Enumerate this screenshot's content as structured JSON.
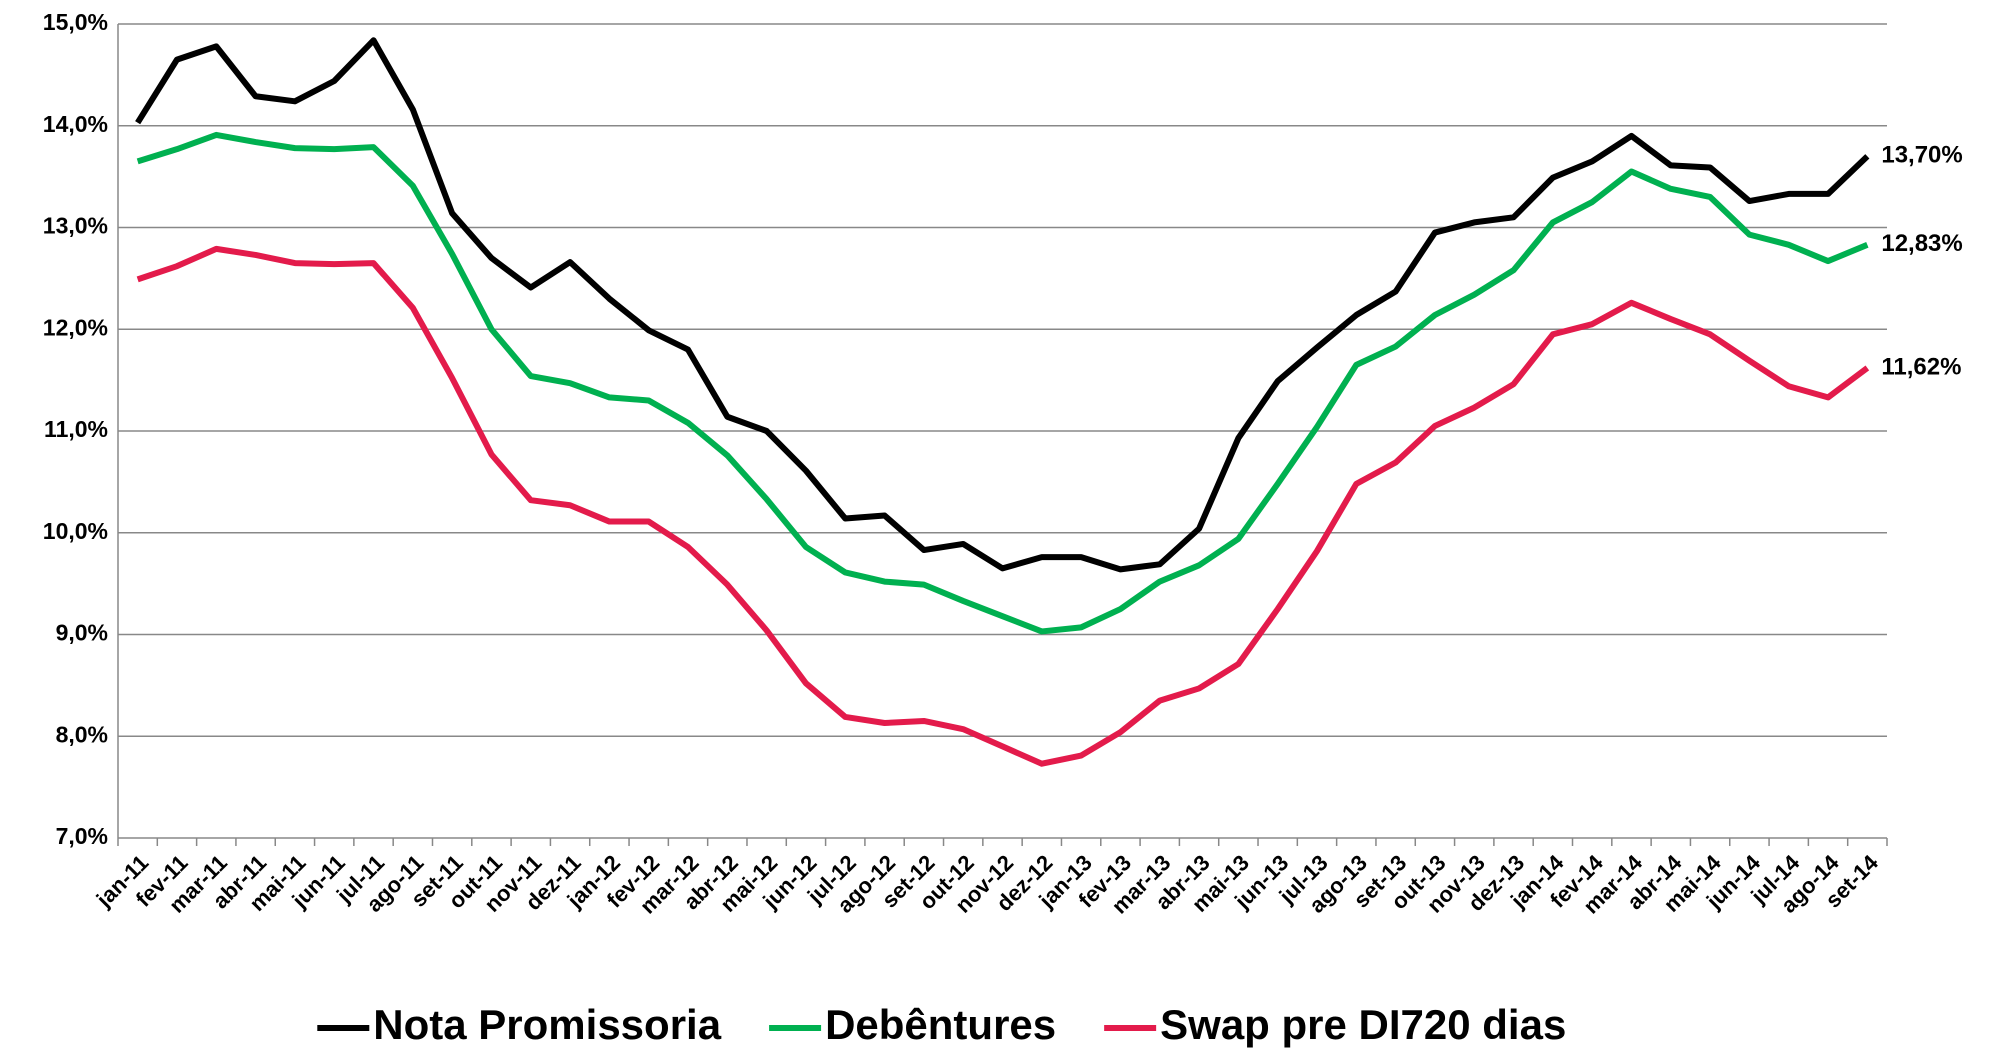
{
  "chart_data": {
    "type": "line",
    "categories": [
      "jan-11",
      "fev-11",
      "mar-11",
      "abr-11",
      "mai-11",
      "jun-11",
      "jul-11",
      "ago-11",
      "set-11",
      "out-11",
      "nov-11",
      "dez-11",
      "jan-12",
      "fev-12",
      "mar-12",
      "abr-12",
      "mai-12",
      "jun-12",
      "jul-12",
      "ago-12",
      "set-12",
      "out-12",
      "nov-12",
      "dez-12",
      "jan-13",
      "fev-13",
      "mar-13",
      "abr-13",
      "mai-13",
      "jun-13",
      "jul-13",
      "ago-13",
      "set-13",
      "out-13",
      "nov-13",
      "dez-13",
      "jan-14",
      "fev-14",
      "mar-14",
      "abr-14",
      "mai-14",
      "jun-14",
      "jul-14",
      "ago-14",
      "set-14"
    ],
    "series": [
      {
        "name": "Nota Promissoria",
        "color": "#000000",
        "values": [
          14.03,
          14.65,
          14.78,
          14.29,
          14.24,
          14.44,
          14.84,
          14.16,
          13.14,
          12.7,
          12.41,
          12.66,
          12.3,
          11.99,
          11.8,
          11.14,
          11.0,
          10.61,
          10.14,
          10.17,
          9.83,
          9.89,
          9.65,
          9.76,
          9.76,
          9.64,
          9.69,
          10.04,
          10.93,
          11.49,
          11.82,
          12.14,
          12.37,
          12.95,
          13.05,
          13.1,
          13.49,
          13.65,
          13.9,
          13.61,
          13.59,
          13.26,
          13.33,
          13.33,
          13.7
        ],
        "value_labels": [
          null,
          null,
          null,
          null,
          null,
          null,
          null,
          null,
          null,
          null,
          null,
          null,
          null,
          null,
          null,
          null,
          null,
          null,
          null,
          null,
          null,
          null,
          null,
          null,
          null,
          null,
          null,
          null,
          null,
          null,
          null,
          null,
          null,
          null,
          null,
          null,
          null,
          null,
          null,
          null,
          null,
          null,
          null,
          null,
          "13,70%"
        ]
      },
      {
        "name": "Debêntures",
        "color": "#00b050",
        "values": [
          13.65,
          13.77,
          13.91,
          13.84,
          13.78,
          13.77,
          13.79,
          13.41,
          12.74,
          12.0,
          11.54,
          11.47,
          11.33,
          11.3,
          11.08,
          10.76,
          10.33,
          9.86,
          9.61,
          9.52,
          9.49,
          9.33,
          9.18,
          9.03,
          9.07,
          9.25,
          9.52,
          9.68,
          9.94,
          10.48,
          11.04,
          11.65,
          11.83,
          12.14,
          12.34,
          12.58,
          13.05,
          13.25,
          13.55,
          13.38,
          13.3,
          12.93,
          12.83,
          12.67,
          12.83
        ],
        "value_labels": [
          null,
          null,
          null,
          null,
          null,
          null,
          null,
          null,
          null,
          null,
          null,
          null,
          null,
          null,
          null,
          null,
          null,
          null,
          null,
          null,
          null,
          null,
          null,
          null,
          null,
          null,
          null,
          null,
          null,
          null,
          null,
          null,
          null,
          null,
          null,
          null,
          null,
          null,
          null,
          null,
          null,
          null,
          null,
          null,
          "12,83%"
        ]
      },
      {
        "name": "Swap pre DI720 dias",
        "color": "#e31b4b",
        "values": [
          12.49,
          12.62,
          12.79,
          12.73,
          12.65,
          12.64,
          12.65,
          12.21,
          11.52,
          10.77,
          10.32,
          10.27,
          10.11,
          10.11,
          9.86,
          9.49,
          9.04,
          8.52,
          8.19,
          8.13,
          8.15,
          8.07,
          7.9,
          7.73,
          7.81,
          8.04,
          8.35,
          8.47,
          8.71,
          9.25,
          9.82,
          10.48,
          10.69,
          11.05,
          11.23,
          11.46,
          11.95,
          12.05,
          12.26,
          12.1,
          11.95,
          11.69,
          11.44,
          11.33,
          11.62
        ],
        "value_labels": [
          null,
          null,
          null,
          null,
          null,
          null,
          null,
          null,
          null,
          null,
          null,
          null,
          null,
          null,
          null,
          null,
          null,
          null,
          null,
          null,
          null,
          null,
          null,
          null,
          null,
          null,
          null,
          null,
          null,
          null,
          null,
          null,
          null,
          null,
          null,
          null,
          null,
          null,
          null,
          null,
          null,
          null,
          null,
          null,
          "11,62%"
        ]
      }
    ],
    "ylim": [
      7,
      15
    ],
    "yticks": [
      {
        "value": 7,
        "label": "7,0%"
      },
      {
        "value": 8,
        "label": "8,0%"
      },
      {
        "value": 9,
        "label": "9,0%"
      },
      {
        "value": 10,
        "label": "10,0%"
      },
      {
        "value": 11,
        "label": "11,0%"
      },
      {
        "value": 12,
        "label": "12,0%"
      },
      {
        "value": 13,
        "label": "13,0%"
      },
      {
        "value": 14,
        "label": "14,0%"
      },
      {
        "value": 15,
        "label": "15,0%"
      }
    ],
    "grid": true,
    "legend": "bottom"
  }
}
